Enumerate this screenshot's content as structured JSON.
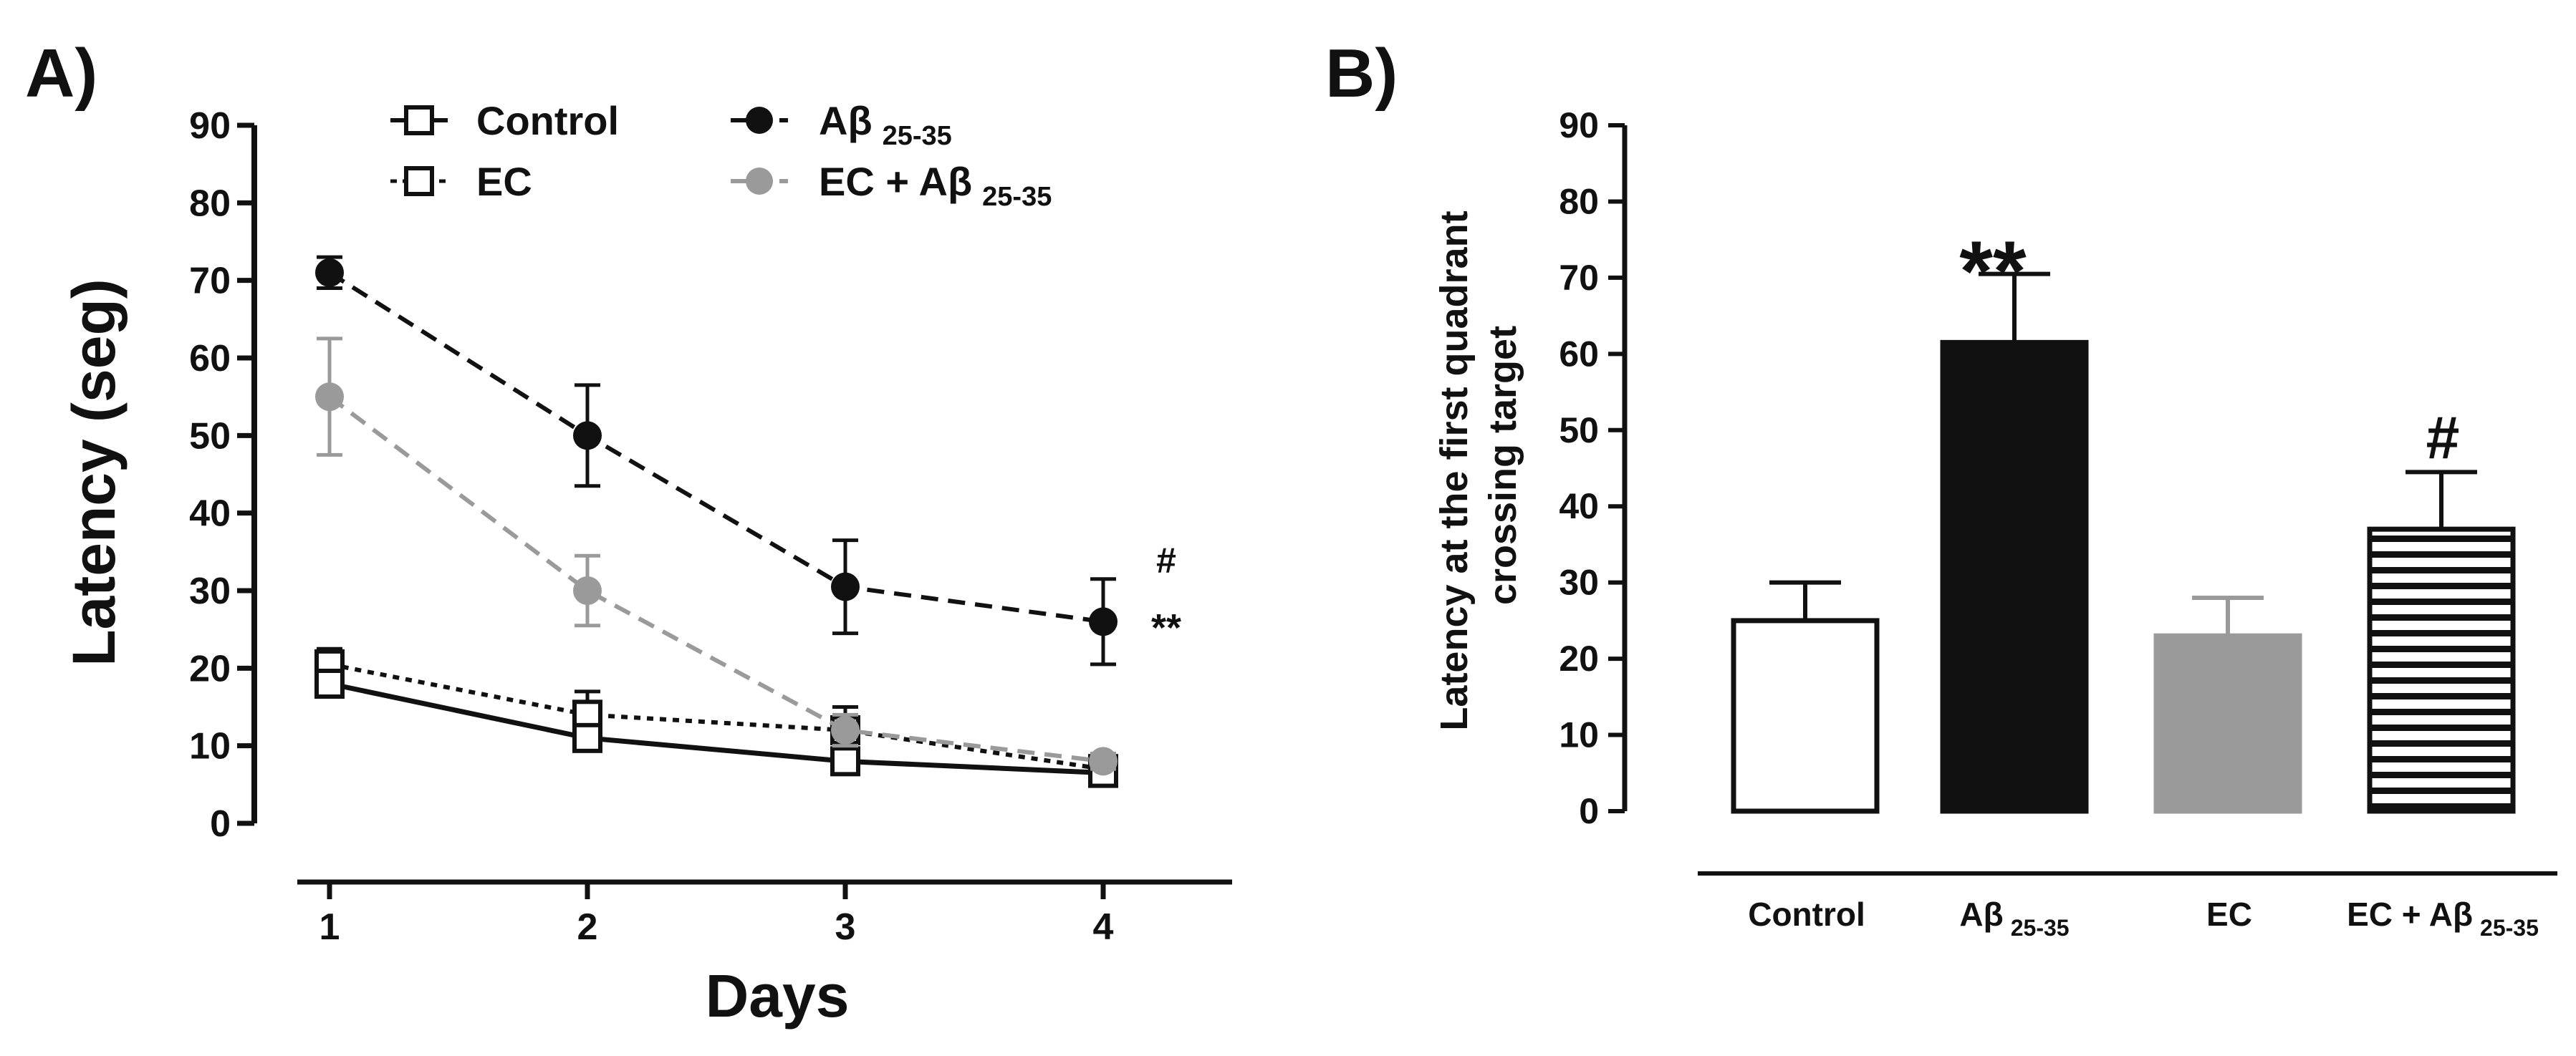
{
  "panel_a": {
    "label": "A)",
    "ylabel": "Latency (seg)",
    "xlabel": "Days",
    "legend": {
      "control": "Control",
      "ec": "EC",
      "abeta_main": "Aβ",
      "abeta_sub": "25-35",
      "ecab_main": "EC + Aβ",
      "ecab_sub": "25-35"
    },
    "annotations": {
      "hash": "#",
      "stars": "**"
    },
    "y_ticks": [
      "0",
      "10",
      "20",
      "30",
      "40",
      "50",
      "60",
      "70",
      "80",
      "90"
    ],
    "x_ticks": [
      "1",
      "2",
      "3",
      "4"
    ]
  },
  "panel_b": {
    "label": "B)",
    "ylabel_line1": "Latency at the first quadrant",
    "ylabel_line2": "crossing target",
    "y_ticks": [
      "0",
      "10",
      "20",
      "30",
      "40",
      "50",
      "60",
      "70",
      "80",
      "90"
    ],
    "cat_control": "Control",
    "cat_abeta_main": "Aβ",
    "cat_abeta_sub": "25-35",
    "cat_ec": "EC",
    "cat_ecab_main": "EC + Aβ",
    "cat_ecab_sub": "25-35",
    "annotations": {
      "stars": "**",
      "hash": "#"
    }
  },
  "colors": {
    "black": "#111111",
    "gray": "#9a9a9a",
    "white": "#ffffff"
  },
  "chart_data": [
    {
      "type": "line",
      "title": "",
      "xlabel": "Days",
      "ylabel": "Latency (seg)",
      "x": [
        1,
        2,
        3,
        4
      ],
      "ylim": [
        0,
        90
      ],
      "series": [
        {
          "name": "Control",
          "values": [
            18,
            11,
            8,
            6.5
          ],
          "errors": [
            1.5,
            1.5,
            1.5,
            1
          ],
          "style": "solid",
          "marker": "square-open"
        },
        {
          "name": "EC",
          "values": [
            20.5,
            14,
            12,
            7
          ],
          "errors": [
            2,
            3,
            3,
            1.5
          ],
          "style": "dotted",
          "marker": "square-open"
        },
        {
          "name": "Aβ 25-35",
          "values": [
            71,
            50,
            30.5,
            26
          ],
          "errors": [
            2,
            6.5,
            6,
            5.5
          ],
          "style": "dashed",
          "marker": "circle-black"
        },
        {
          "name": "EC + Aβ 25-35",
          "values": [
            55,
            30,
            12,
            8
          ],
          "errors": [
            7.5,
            4.5,
            2,
            1
          ],
          "style": "dashed",
          "marker": "circle-gray"
        }
      ],
      "legend_position": "top"
    },
    {
      "type": "bar",
      "title": "",
      "xlabel": "",
      "ylabel": "Latency at the first quadrant crossing target",
      "categories": [
        "Control",
        "Aβ 25-35",
        "EC",
        "EC + Aβ 25-35"
      ],
      "values": [
        25,
        61.5,
        23,
        37
      ],
      "errors": [
        5,
        9,
        5,
        7.5
      ],
      "ylim": [
        0,
        90
      ]
    }
  ]
}
